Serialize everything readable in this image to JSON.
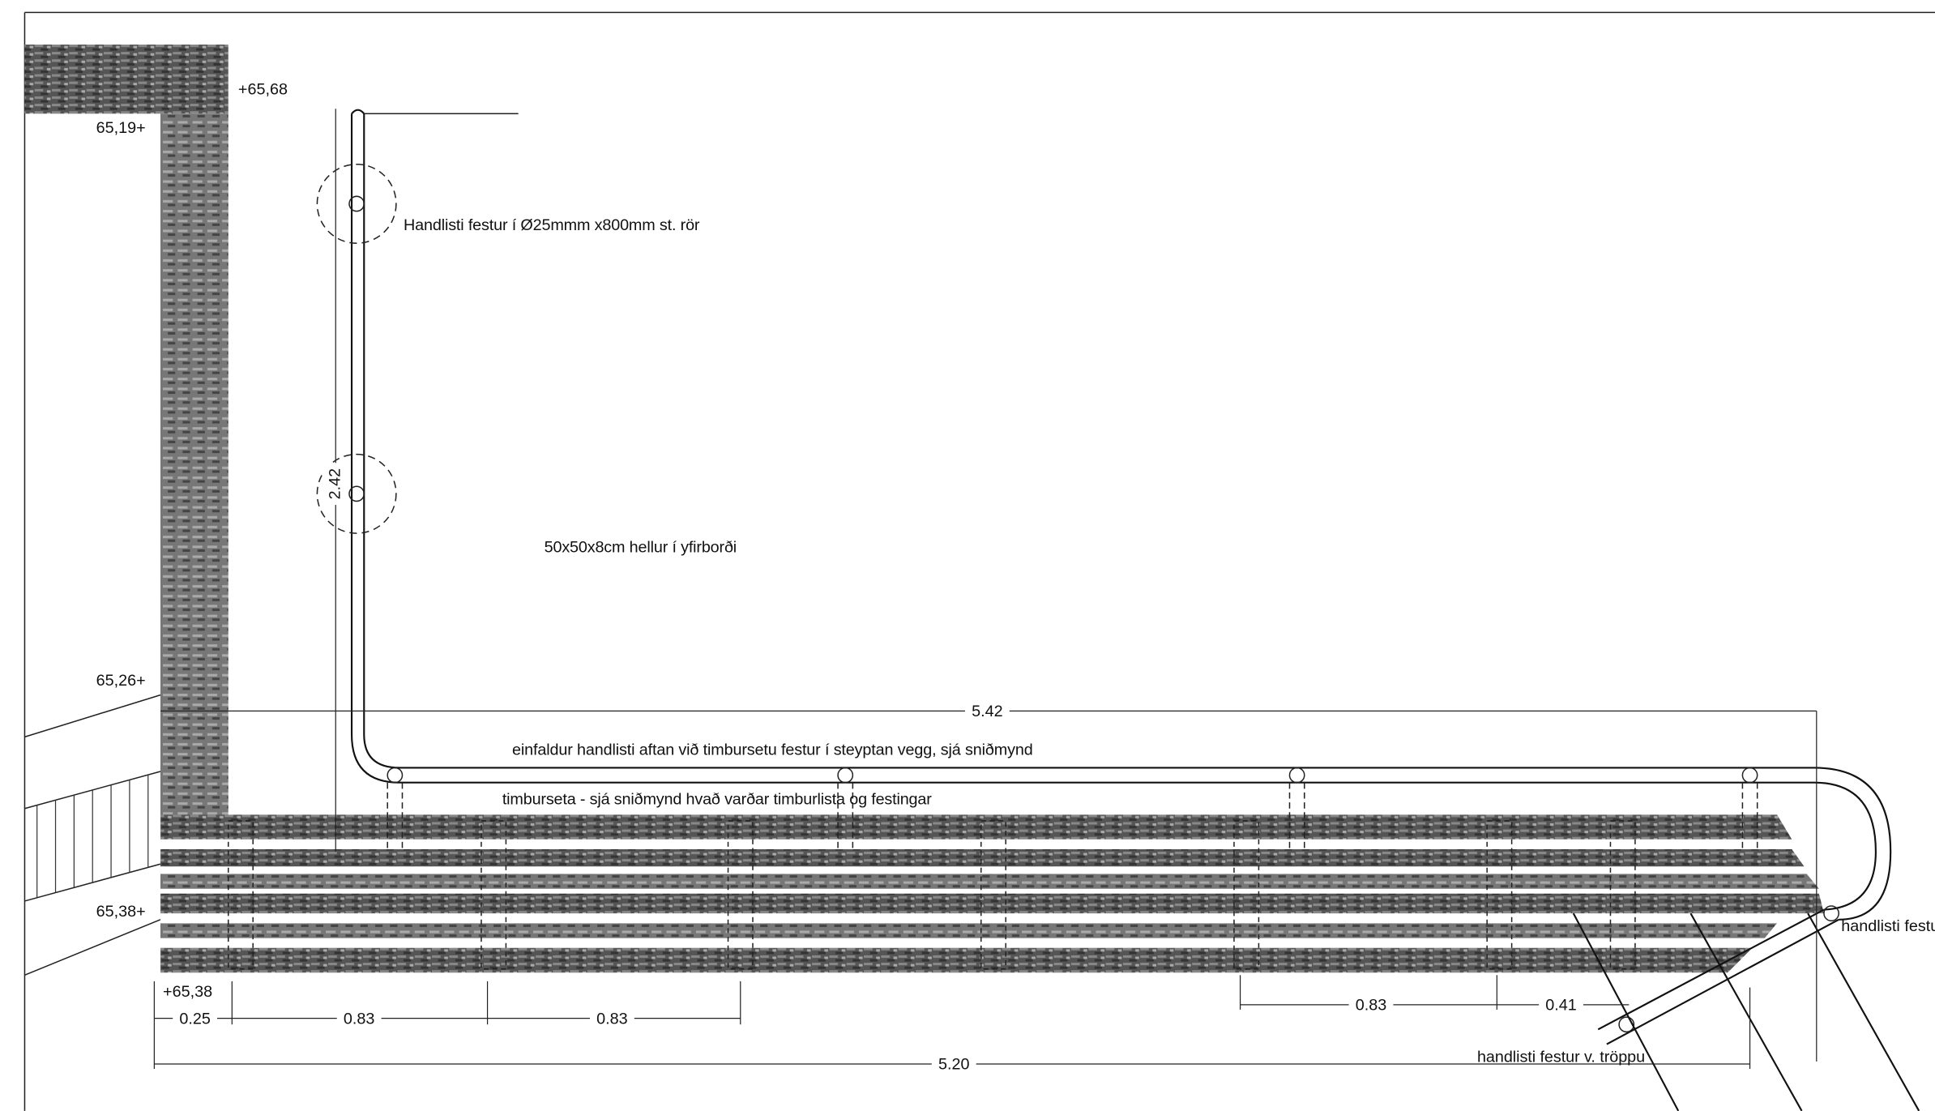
{
  "elevations": [
    "+65,68",
    "65,19+",
    "65,26+",
    "65,38+",
    "+65,38"
  ],
  "annotations": [
    "Handlisti festur í Ø25mmm x800mm st. rör",
    "50x50x8cm hellur í yfirborði",
    "einfaldur handlisti aftan við timbursetu festur í steyptan vegg, sjá sniðmynd",
    "timburseta - sjá sniðmynd hvað varðar timburlista og festingar",
    "handlisti festu",
    "handlisti festur v. tröppu"
  ],
  "dimensions": [
    "2.42",
    "5.42",
    "0.25",
    "0.83",
    "0.83",
    "5.20",
    "0.83",
    "0.41"
  ]
}
